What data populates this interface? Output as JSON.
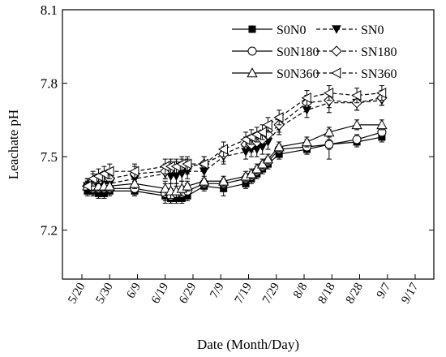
{
  "chart_data": {
    "type": "line",
    "xlabel": "Date (Month/Day)",
    "ylabel": "Leachate pH",
    "ylim": [
      7.0,
      8.1
    ],
    "yticks": [
      "7.2",
      "7.5",
      "7.8",
      "8.1"
    ],
    "xticks": [
      "5/20",
      "5/30",
      "6/9",
      "6/19",
      "6/29",
      "7/9",
      "7/19",
      "7/29",
      "8/8",
      "8/18",
      "8/28",
      "9/7",
      "9/17"
    ],
    "x": [
      "5/22",
      "5/24",
      "5/26",
      "5/28",
      "5/30",
      "6/8",
      "6/19",
      "6/21",
      "6/23",
      "6/25",
      "6/27",
      "7/3",
      "7/10",
      "7/18",
      "7/20",
      "7/22",
      "7/24",
      "7/26",
      "7/30",
      "8/9",
      "8/17",
      "8/27",
      "9/5"
    ],
    "grid": false,
    "legend_position": "top-right",
    "series": [
      {
        "name": "S0N0",
        "style": "solid",
        "marker": "square-filled",
        "values": [
          7.36,
          7.36,
          7.35,
          7.35,
          7.36,
          7.36,
          7.34,
          7.33,
          7.33,
          7.33,
          7.34,
          7.38,
          7.37,
          7.39,
          7.41,
          7.43,
          7.45,
          7.47,
          7.51,
          7.53,
          7.55,
          7.56,
          7.58
        ],
        "error": [
          0.02,
          0.02,
          0.02,
          0.02,
          0.02,
          0.02,
          0.02,
          0.02,
          0.02,
          0.02,
          0.02,
          0.02,
          0.03,
          0.02,
          0.02,
          0.02,
          0.02,
          0.02,
          0.02,
          0.02,
          0.02,
          0.02,
          0.02
        ]
      },
      {
        "name": "SN0",
        "style": "dashed",
        "marker": "triangle-down-filled",
        "values": [
          7.38,
          7.39,
          7.38,
          7.39,
          7.39,
          7.41,
          7.43,
          7.42,
          7.42,
          7.43,
          7.44,
          7.44,
          7.5,
          7.52,
          7.53,
          7.53,
          7.54,
          7.56,
          7.62,
          7.69,
          7.72,
          7.72,
          7.73
        ],
        "error": [
          0.02,
          0.02,
          0.02,
          0.02,
          0.02,
          0.02,
          0.02,
          0.03,
          0.03,
          0.03,
          0.03,
          0.03,
          0.03,
          0.03,
          0.03,
          0.03,
          0.03,
          0.03,
          0.03,
          0.03,
          0.04,
          0.03,
          0.02
        ]
      },
      {
        "name": "S0N180",
        "style": "solid",
        "marker": "circle-open",
        "values": [
          7.38,
          7.37,
          7.37,
          7.37,
          7.37,
          7.37,
          7.35,
          7.34,
          7.35,
          7.35,
          7.36,
          7.39,
          7.39,
          7.41,
          7.42,
          7.44,
          7.46,
          7.48,
          7.53,
          7.54,
          7.55,
          7.57,
          7.6
        ],
        "error": [
          0.03,
          0.03,
          0.02,
          0.02,
          0.02,
          0.03,
          0.04,
          0.03,
          0.03,
          0.03,
          0.03,
          0.02,
          0.02,
          0.02,
          0.02,
          0.02,
          0.02,
          0.02,
          0.02,
          0.03,
          0.06,
          0.02,
          0.02
        ]
      },
      {
        "name": "SN180",
        "style": "dashed",
        "marker": "diamond-open",
        "values": [
          7.38,
          7.4,
          7.4,
          7.41,
          7.41,
          7.43,
          7.44,
          7.45,
          7.45,
          7.46,
          7.46,
          7.47,
          7.51,
          7.55,
          7.55,
          7.56,
          7.57,
          7.59,
          7.63,
          7.72,
          7.73,
          7.72,
          7.74
        ],
        "error": [
          0.03,
          0.03,
          0.03,
          0.03,
          0.03,
          0.03,
          0.03,
          0.03,
          0.03,
          0.03,
          0.03,
          0.03,
          0.03,
          0.03,
          0.03,
          0.03,
          0.03,
          0.03,
          0.03,
          0.03,
          0.03,
          0.03,
          0.03
        ]
      },
      {
        "name": "S0N360",
        "style": "solid",
        "marker": "triangle-up-open",
        "values": [
          7.38,
          7.38,
          7.38,
          7.38,
          7.38,
          7.39,
          7.37,
          7.36,
          7.36,
          7.37,
          7.38,
          7.4,
          7.4,
          7.42,
          7.43,
          7.45,
          7.47,
          7.49,
          7.54,
          7.56,
          7.6,
          7.63,
          7.63
        ],
        "error": [
          0.02,
          0.02,
          0.02,
          0.02,
          0.02,
          0.02,
          0.03,
          0.03,
          0.03,
          0.03,
          0.02,
          0.02,
          0.02,
          0.02,
          0.02,
          0.02,
          0.02,
          0.02,
          0.02,
          0.02,
          0.02,
          0.02,
          0.02
        ]
      },
      {
        "name": "SN360",
        "style": "dashed",
        "marker": "triangle-left-open",
        "values": [
          7.38,
          7.41,
          7.42,
          7.43,
          7.44,
          7.44,
          7.46,
          7.46,
          7.46,
          7.47,
          7.47,
          7.47,
          7.53,
          7.57,
          7.58,
          7.59,
          7.6,
          7.63,
          7.66,
          7.74,
          7.76,
          7.75,
          7.76
        ],
        "error": [
          0.03,
          0.03,
          0.03,
          0.03,
          0.03,
          0.03,
          0.03,
          0.03,
          0.03,
          0.03,
          0.03,
          0.03,
          0.03,
          0.03,
          0.03,
          0.03,
          0.03,
          0.03,
          0.03,
          0.03,
          0.03,
          0.03,
          0.03
        ]
      }
    ]
  }
}
